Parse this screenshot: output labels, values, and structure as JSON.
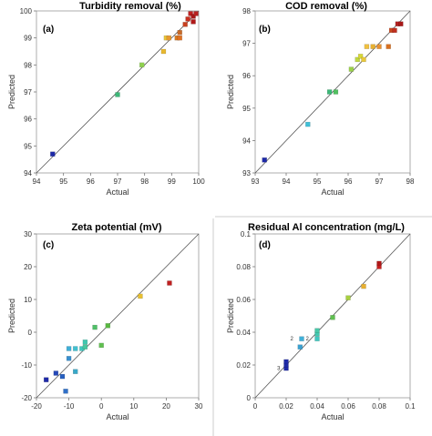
{
  "chart_data": [
    {
      "type": "scatter",
      "panel": "(a)",
      "title": "Turbidity removal (%)",
      "xlabel": "Actual",
      "ylabel": "Predicted",
      "xlim": [
        94,
        100
      ],
      "ylim": [
        94,
        100
      ],
      "xticks": [
        "94",
        "95",
        "96",
        "97",
        "98",
        "99",
        "100"
      ],
      "yticks": [
        "94",
        "95",
        "96",
        "97",
        "98",
        "99",
        "100"
      ],
      "reference_line": "y = x",
      "points": [
        {
          "x": 94.6,
          "y": 94.7,
          "color": "#1e2aa8"
        },
        {
          "x": 97.0,
          "y": 96.9,
          "color": "#3cb878"
        },
        {
          "x": 97.9,
          "y": 98.0,
          "color": "#8fd14f"
        },
        {
          "x": 98.7,
          "y": 98.5,
          "color": "#e8b830"
        },
        {
          "x": 98.8,
          "y": 99.0,
          "color": "#e8c53a"
        },
        {
          "x": 98.9,
          "y": 99.0,
          "color": "#e89a30"
        },
        {
          "x": 99.2,
          "y": 99.0,
          "color": "#d97a1e"
        },
        {
          "x": 99.3,
          "y": 99.0,
          "color": "#e07020"
        },
        {
          "x": 99.3,
          "y": 99.2,
          "color": "#c86a28"
        },
        {
          "x": 99.5,
          "y": 99.5,
          "color": "#c84020"
        },
        {
          "x": 99.6,
          "y": 99.7,
          "color": "#c83020"
        },
        {
          "x": 99.7,
          "y": 99.9,
          "color": "#c02020"
        },
        {
          "x": 99.8,
          "y": 99.6,
          "color": "#b01818"
        },
        {
          "x": 99.8,
          "y": 99.8,
          "color": "#a81818"
        },
        {
          "x": 99.9,
          "y": 99.9,
          "color": "#b82020"
        }
      ]
    },
    {
      "type": "scatter",
      "panel": "(b)",
      "title": "COD removal (%)",
      "xlabel": "Actual",
      "ylabel": "Predicted",
      "xlim": [
        93,
        98
      ],
      "ylim": [
        93,
        98
      ],
      "xticks": [
        "93",
        "94",
        "95",
        "96",
        "97",
        "98"
      ],
      "yticks": [
        "93",
        "94",
        "95",
        "96",
        "97",
        "98"
      ],
      "reference_line": "y = x",
      "points": [
        {
          "x": 93.3,
          "y": 93.4,
          "color": "#1e2aa8"
        },
        {
          "x": 94.7,
          "y": 94.5,
          "color": "#40c0d8"
        },
        {
          "x": 95.4,
          "y": 95.5,
          "color": "#3cb878"
        },
        {
          "x": 95.6,
          "y": 95.5,
          "color": "#50c060"
        },
        {
          "x": 96.1,
          "y": 96.2,
          "color": "#9bd14a"
        },
        {
          "x": 96.3,
          "y": 96.5,
          "color": "#c0d840"
        },
        {
          "x": 96.4,
          "y": 96.6,
          "color": "#d8d838"
        },
        {
          "x": 96.5,
          "y": 96.5,
          "color": "#e8c83a"
        },
        {
          "x": 96.6,
          "y": 96.9,
          "color": "#f0c040"
        },
        {
          "x": 96.8,
          "y": 96.9,
          "color": "#e8b030"
        },
        {
          "x": 97.0,
          "y": 96.9,
          "color": "#e89030"
        },
        {
          "x": 97.3,
          "y": 96.9,
          "color": "#d87020"
        },
        {
          "x": 97.4,
          "y": 97.4,
          "color": "#c84820"
        },
        {
          "x": 97.5,
          "y": 97.4,
          "color": "#c03020"
        },
        {
          "x": 97.6,
          "y": 97.6,
          "color": "#b02020"
        },
        {
          "x": 97.7,
          "y": 97.6,
          "color": "#a81818"
        }
      ]
    },
    {
      "type": "scatter",
      "panel": "(c)",
      "title": "Zeta potential (mV)",
      "xlabel": "Actual",
      "ylabel": "Predicted",
      "xlim": [
        -20,
        30
      ],
      "ylim": [
        -20,
        30
      ],
      "xticks": [
        "-20",
        "-10",
        "0",
        "10",
        "20",
        "30"
      ],
      "yticks": [
        "-20",
        "-10",
        "0",
        "10",
        "20",
        "30"
      ],
      "reference_line": "y = x",
      "points": [
        {
          "x": -17,
          "y": -14.5,
          "color": "#1e2aa8"
        },
        {
          "x": -14,
          "y": -12.5,
          "color": "#2448b8"
        },
        {
          "x": -12,
          "y": -13.5,
          "color": "#2860c0"
        },
        {
          "x": -11,
          "y": -18,
          "color": "#3070c8"
        },
        {
          "x": -10,
          "y": -8,
          "color": "#3890d0"
        },
        {
          "x": -10,
          "y": -5,
          "color": "#40b0d8"
        },
        {
          "x": -8,
          "y": -12,
          "color": "#38a8c8"
        },
        {
          "x": -8,
          "y": -5,
          "color": "#40c0d0"
        },
        {
          "x": -6,
          "y": -5,
          "color": "#40c8c0"
        },
        {
          "x": -5,
          "y": -3,
          "color": "#40c8b0"
        },
        {
          "x": -5,
          "y": -4.5,
          "color": "#48c8a0"
        },
        {
          "x": -2,
          "y": 1.5,
          "color": "#50c068"
        },
        {
          "x": 0,
          "y": -4,
          "color": "#60c050"
        },
        {
          "x": 2,
          "y": 2,
          "color": "#58b840"
        },
        {
          "x": 12,
          "y": 11,
          "color": "#e8c030"
        },
        {
          "x": 21,
          "y": 15,
          "color": "#c02020"
        }
      ]
    },
    {
      "type": "scatter",
      "panel": "(d)",
      "title": "Residual Al concentration (mg/L)",
      "xlabel": "Actual",
      "ylabel": "Predicted",
      "xlim": [
        0,
        0.1
      ],
      "ylim": [
        0,
        0.1
      ],
      "xticks": [
        "0",
        "0.02",
        "0.04",
        "0.06",
        "0.08",
        "0.1"
      ],
      "yticks": [
        "0",
        "0.02",
        "0.04",
        "0.06",
        "0.08",
        "0.1"
      ],
      "reference_line": "y = x",
      "annotations": [
        {
          "text": "3",
          "x": 0.0185,
          "y": 0.018
        },
        {
          "text": "2",
          "x": 0.027,
          "y": 0.036
        },
        {
          "text": "2",
          "x": 0.037,
          "y": 0.036
        }
      ],
      "points": [
        {
          "x": 0.02,
          "y": 0.018,
          "color": "#1e2aa8"
        },
        {
          "x": 0.02,
          "y": 0.02,
          "color": "#1e2aa8"
        },
        {
          "x": 0.02,
          "y": 0.022,
          "color": "#1e2aa8"
        },
        {
          "x": 0.029,
          "y": 0.031,
          "color": "#38a0d0"
        },
        {
          "x": 0.03,
          "y": 0.036,
          "color": "#40b0d8"
        },
        {
          "x": 0.04,
          "y": 0.036,
          "color": "#40c8c0"
        },
        {
          "x": 0.04,
          "y": 0.039,
          "color": "#40c8b0"
        },
        {
          "x": 0.04,
          "y": 0.041,
          "color": "#48c8a8"
        },
        {
          "x": 0.05,
          "y": 0.049,
          "color": "#60c050"
        },
        {
          "x": 0.06,
          "y": 0.061,
          "color": "#a8d040"
        },
        {
          "x": 0.07,
          "y": 0.068,
          "color": "#e8b030"
        },
        {
          "x": 0.08,
          "y": 0.08,
          "color": "#c82020"
        },
        {
          "x": 0.08,
          "y": 0.082,
          "color": "#b01818"
        }
      ]
    }
  ]
}
